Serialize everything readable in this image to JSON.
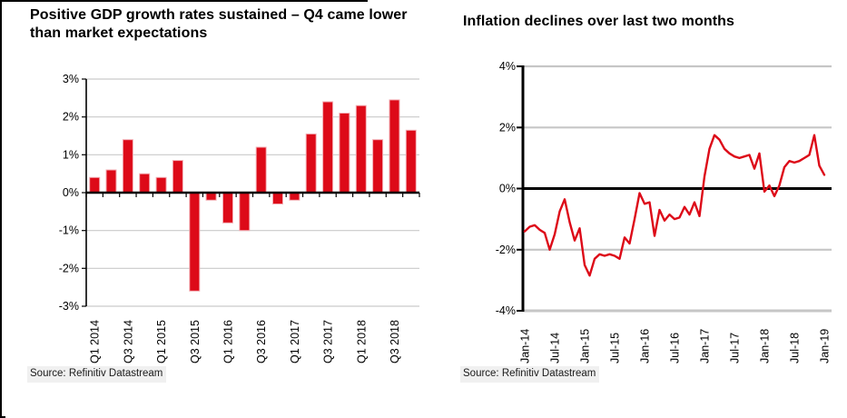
{
  "page": {
    "background": "#ffffff",
    "frame_color": "#000000"
  },
  "chart_data": [
    {
      "type": "bar",
      "title": "Positive GDP growth rates sustained – Q4 came lower than market expectations",
      "source": "Source: Refinitiv Datastream",
      "categories": [
        "Q1 2014",
        "Q2 2014",
        "Q3 2014",
        "Q4 2014",
        "Q1 2015",
        "Q2 2015",
        "Q3 2015",
        "Q4 2015",
        "Q1 2016",
        "Q2 2016",
        "Q3 2016",
        "Q4 2016",
        "Q1 2017",
        "Q2 2017",
        "Q3 2017",
        "Q4 2017",
        "Q1 2018",
        "Q2 2018",
        "Q3 2018",
        "Q4 2018"
      ],
      "values": [
        0.4,
        0.6,
        1.4,
        0.5,
        0.4,
        0.85,
        -2.6,
        -0.2,
        -0.8,
        -1.0,
        1.2,
        -0.3,
        -0.2,
        1.55,
        2.4,
        2.1,
        2.3,
        1.4,
        2.45,
        1.65
      ],
      "x_tick_labels": [
        "Q1 2014",
        "Q3 2014",
        "Q1 2015",
        "Q3 2015",
        "Q1 2016",
        "Q3 2016",
        "Q1 2017",
        "Q3 2017",
        "Q1 2018",
        "Q3 2018"
      ],
      "ylabel": "",
      "xlabel": "",
      "unit": "%",
      "ylim": [
        -3,
        3
      ],
      "y_ticks": [
        3,
        2,
        1,
        0,
        -1,
        -2,
        -3
      ],
      "y_tick_labels": [
        "3%",
        "2%",
        "1%",
        "0%",
        "-1%",
        "-2%",
        "-3%"
      ],
      "grid": true,
      "grid_color": "#c9c9c9",
      "axis_color": "#000000",
      "bar_color": "#dd0a18",
      "bar_edge_color": "#f3adb3",
      "legend": "none"
    },
    {
      "type": "line",
      "title": "Inflation declines over last two months",
      "source": "Source: Refinitiv Datastream",
      "x": [
        "Jan-14",
        "Feb-14",
        "Mar-14",
        "Apr-14",
        "May-14",
        "Jun-14",
        "Jul-14",
        "Aug-14",
        "Sep-14",
        "Oct-14",
        "Nov-14",
        "Dec-14",
        "Jan-15",
        "Feb-15",
        "Mar-15",
        "Apr-15",
        "May-15",
        "Jun-15",
        "Jul-15",
        "Aug-15",
        "Sep-15",
        "Oct-15",
        "Nov-15",
        "Dec-15",
        "Jan-16",
        "Feb-16",
        "Mar-16",
        "Apr-16",
        "May-16",
        "Jun-16",
        "Jul-16",
        "Aug-16",
        "Sep-16",
        "Oct-16",
        "Nov-16",
        "Dec-16",
        "Jan-17",
        "Feb-17",
        "Mar-17",
        "Apr-17",
        "May-17",
        "Jun-17",
        "Jul-17",
        "Aug-17",
        "Sep-17",
        "Oct-17",
        "Nov-17",
        "Dec-17",
        "Jan-18",
        "Feb-18",
        "Mar-18",
        "Apr-18",
        "May-18",
        "Jun-18",
        "Jul-18",
        "Aug-18",
        "Sep-18",
        "Oct-18",
        "Nov-18",
        "Dec-18",
        "Jan-19"
      ],
      "values": [
        -1.4,
        -1.25,
        -1.2,
        -1.35,
        -1.45,
        -2.0,
        -1.5,
        -0.75,
        -0.35,
        -1.1,
        -1.7,
        -1.3,
        -2.5,
        -2.85,
        -2.3,
        -2.15,
        -2.2,
        -2.15,
        -2.2,
        -2.3,
        -1.6,
        -1.8,
        -1.0,
        -0.15,
        -0.5,
        -0.45,
        -1.55,
        -0.7,
        -1.05,
        -0.85,
        -1.0,
        -0.95,
        -0.6,
        -0.85,
        -0.45,
        -0.9,
        0.4,
        1.3,
        1.75,
        1.6,
        1.3,
        1.15,
        1.05,
        1.0,
        1.05,
        1.1,
        0.65,
        1.15,
        -0.1,
        0.1,
        -0.25,
        0.1,
        0.7,
        0.9,
        0.85,
        0.9,
        1.0,
        1.1,
        1.75,
        0.75,
        0.45
      ],
      "x_tick_labels": [
        "Jan-14",
        "Jul-14",
        "Jan-15",
        "Jul-15",
        "Jan-16",
        "Jul-16",
        "Jan-17",
        "Jul-17",
        "Jan-18",
        "Jul-18",
        "Jan-19"
      ],
      "ylabel": "",
      "xlabel": "",
      "unit": "%",
      "ylim": [
        -4,
        4
      ],
      "y_ticks": [
        4,
        2,
        0,
        -2,
        -4
      ],
      "y_tick_labels": [
        "4%",
        "2%",
        "0%",
        "-2%",
        "-4%"
      ],
      "grid": true,
      "grid_color": "#c6c6c6",
      "axis_color": "#000000",
      "line_color": "#dd0a18",
      "legend": "none"
    }
  ]
}
